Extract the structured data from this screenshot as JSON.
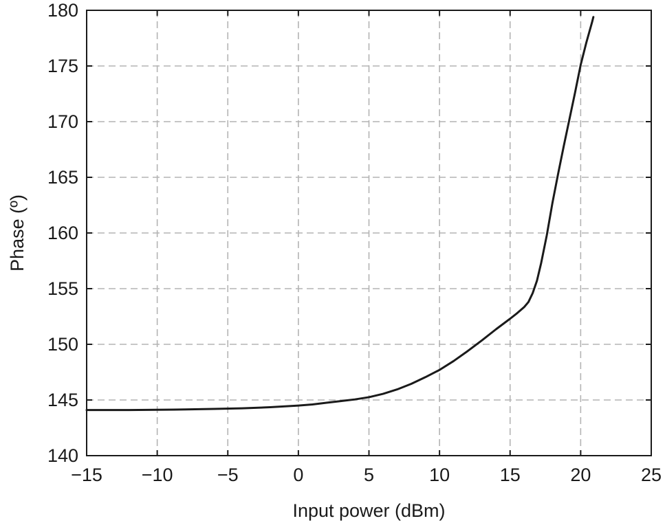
{
  "chart_data": {
    "type": "line",
    "title": "",
    "xlabel": "Input power (dBm)",
    "ylabel": "Phase (º)",
    "xlim": [
      -15,
      25
    ],
    "ylim": [
      140,
      180
    ],
    "xticks": [
      -15,
      -10,
      -5,
      0,
      5,
      10,
      15,
      20,
      25
    ],
    "yticks": [
      140,
      145,
      150,
      155,
      160,
      165,
      170,
      175,
      180
    ],
    "xtick_labels": [
      "−15",
      "−10",
      "−5",
      "0",
      "5",
      "10",
      "15",
      "20",
      "25"
    ],
    "ytick_labels": [
      "140",
      "145",
      "150",
      "155",
      "160",
      "165",
      "170",
      "175",
      "180"
    ],
    "grid": true,
    "legend": "none",
    "line_color": "#1a1a1a",
    "grid_color": "#b3b3b3",
    "series": [
      {
        "x": [
          -15,
          -12,
          -10,
          -8,
          -6,
          -4,
          -2,
          0,
          1,
          2,
          3,
          4,
          5,
          6,
          7,
          8,
          9,
          10,
          11,
          12,
          13,
          14,
          15,
          15.5,
          16,
          16.3,
          16.6,
          16.9,
          17.2,
          17.6,
          18,
          18.4,
          18.8,
          19.2,
          19.6,
          20,
          20.4,
          20.8,
          20.9
        ],
        "y": [
          144.1,
          144.1,
          144.12,
          144.15,
          144.2,
          144.25,
          144.35,
          144.5,
          144.6,
          144.75,
          144.9,
          145.05,
          145.25,
          145.55,
          145.95,
          146.45,
          147.05,
          147.7,
          148.5,
          149.4,
          150.35,
          151.35,
          152.3,
          152.8,
          153.35,
          153.8,
          154.6,
          155.7,
          157.3,
          159.8,
          162.7,
          165.3,
          167.8,
          170.2,
          172.6,
          175.1,
          177.1,
          178.9,
          179.4
        ]
      }
    ]
  }
}
